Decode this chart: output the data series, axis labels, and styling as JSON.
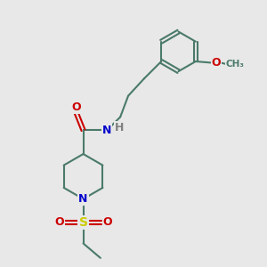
{
  "bg_color": "#e8e8e8",
  "bond_color": "#4a7a6a",
  "bond_width": 1.5,
  "N_color": "#0000cc",
  "O_color": "#cc0000",
  "S_color": "#cccc00",
  "H_color": "#808080",
  "text_fontsize": 9,
  "xlim": [
    0,
    10
  ],
  "ylim": [
    0,
    10
  ]
}
